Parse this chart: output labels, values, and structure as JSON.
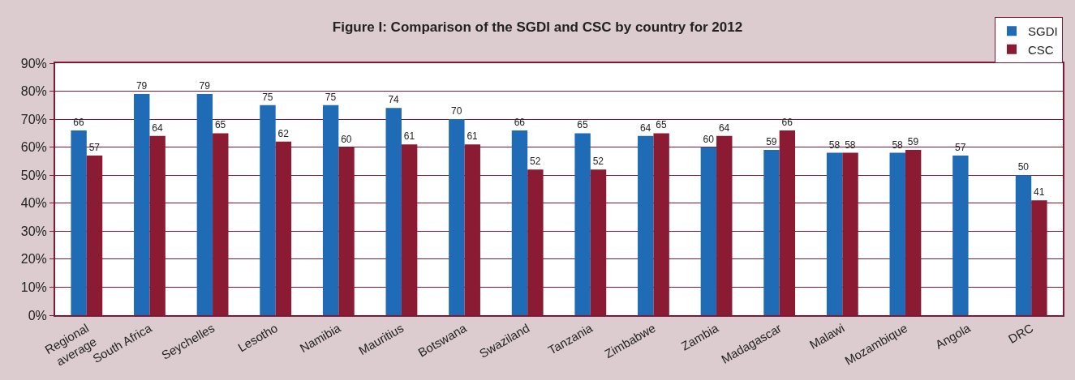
{
  "chart_data": {
    "type": "bar",
    "title": "Figure I: Comparison of the SGDI and CSC by country for 2012",
    "categories": [
      "Regional\naverage",
      "South Africa",
      "Seychelles",
      "Lesotho",
      "Namibia",
      "Mauritius",
      "Botswana",
      "Swaziland",
      "Tanzania",
      "Zimbabwe",
      "Zambia",
      "Madagascar",
      "Malawi",
      "Mozambique",
      "Angola",
      "DRC"
    ],
    "series": [
      {
        "name": "SGDI",
        "color": "#1f6bb5",
        "values": [
          66,
          79,
          79,
          75,
          75,
          74,
          70,
          66,
          65,
          64,
          60,
          59,
          58,
          58,
          57,
          50
        ]
      },
      {
        "name": "CSC",
        "color": "#8b1a33",
        "values": [
          57,
          64,
          65,
          62,
          60,
          61,
          61,
          52,
          52,
          65,
          64,
          66,
          58,
          59,
          null,
          41
        ]
      }
    ],
    "ylim": [
      0,
      90
    ],
    "yticks": [
      {
        "value": 0,
        "label": "0%"
      },
      {
        "value": 10,
        "label": "10%"
      },
      {
        "value": 20,
        "label": "20%"
      },
      {
        "value": 30,
        "label": "30%"
      },
      {
        "value": 40,
        "label": "40%"
      },
      {
        "value": 50,
        "label": "50%"
      },
      {
        "value": 60,
        "label": "60%"
      },
      {
        "value": 70,
        "label": "70%"
      },
      {
        "value": 80,
        "label": "80%"
      },
      {
        "value": 90,
        "label": "90%"
      }
    ],
    "grid": "y",
    "legend": "top right",
    "data_labels": true
  }
}
